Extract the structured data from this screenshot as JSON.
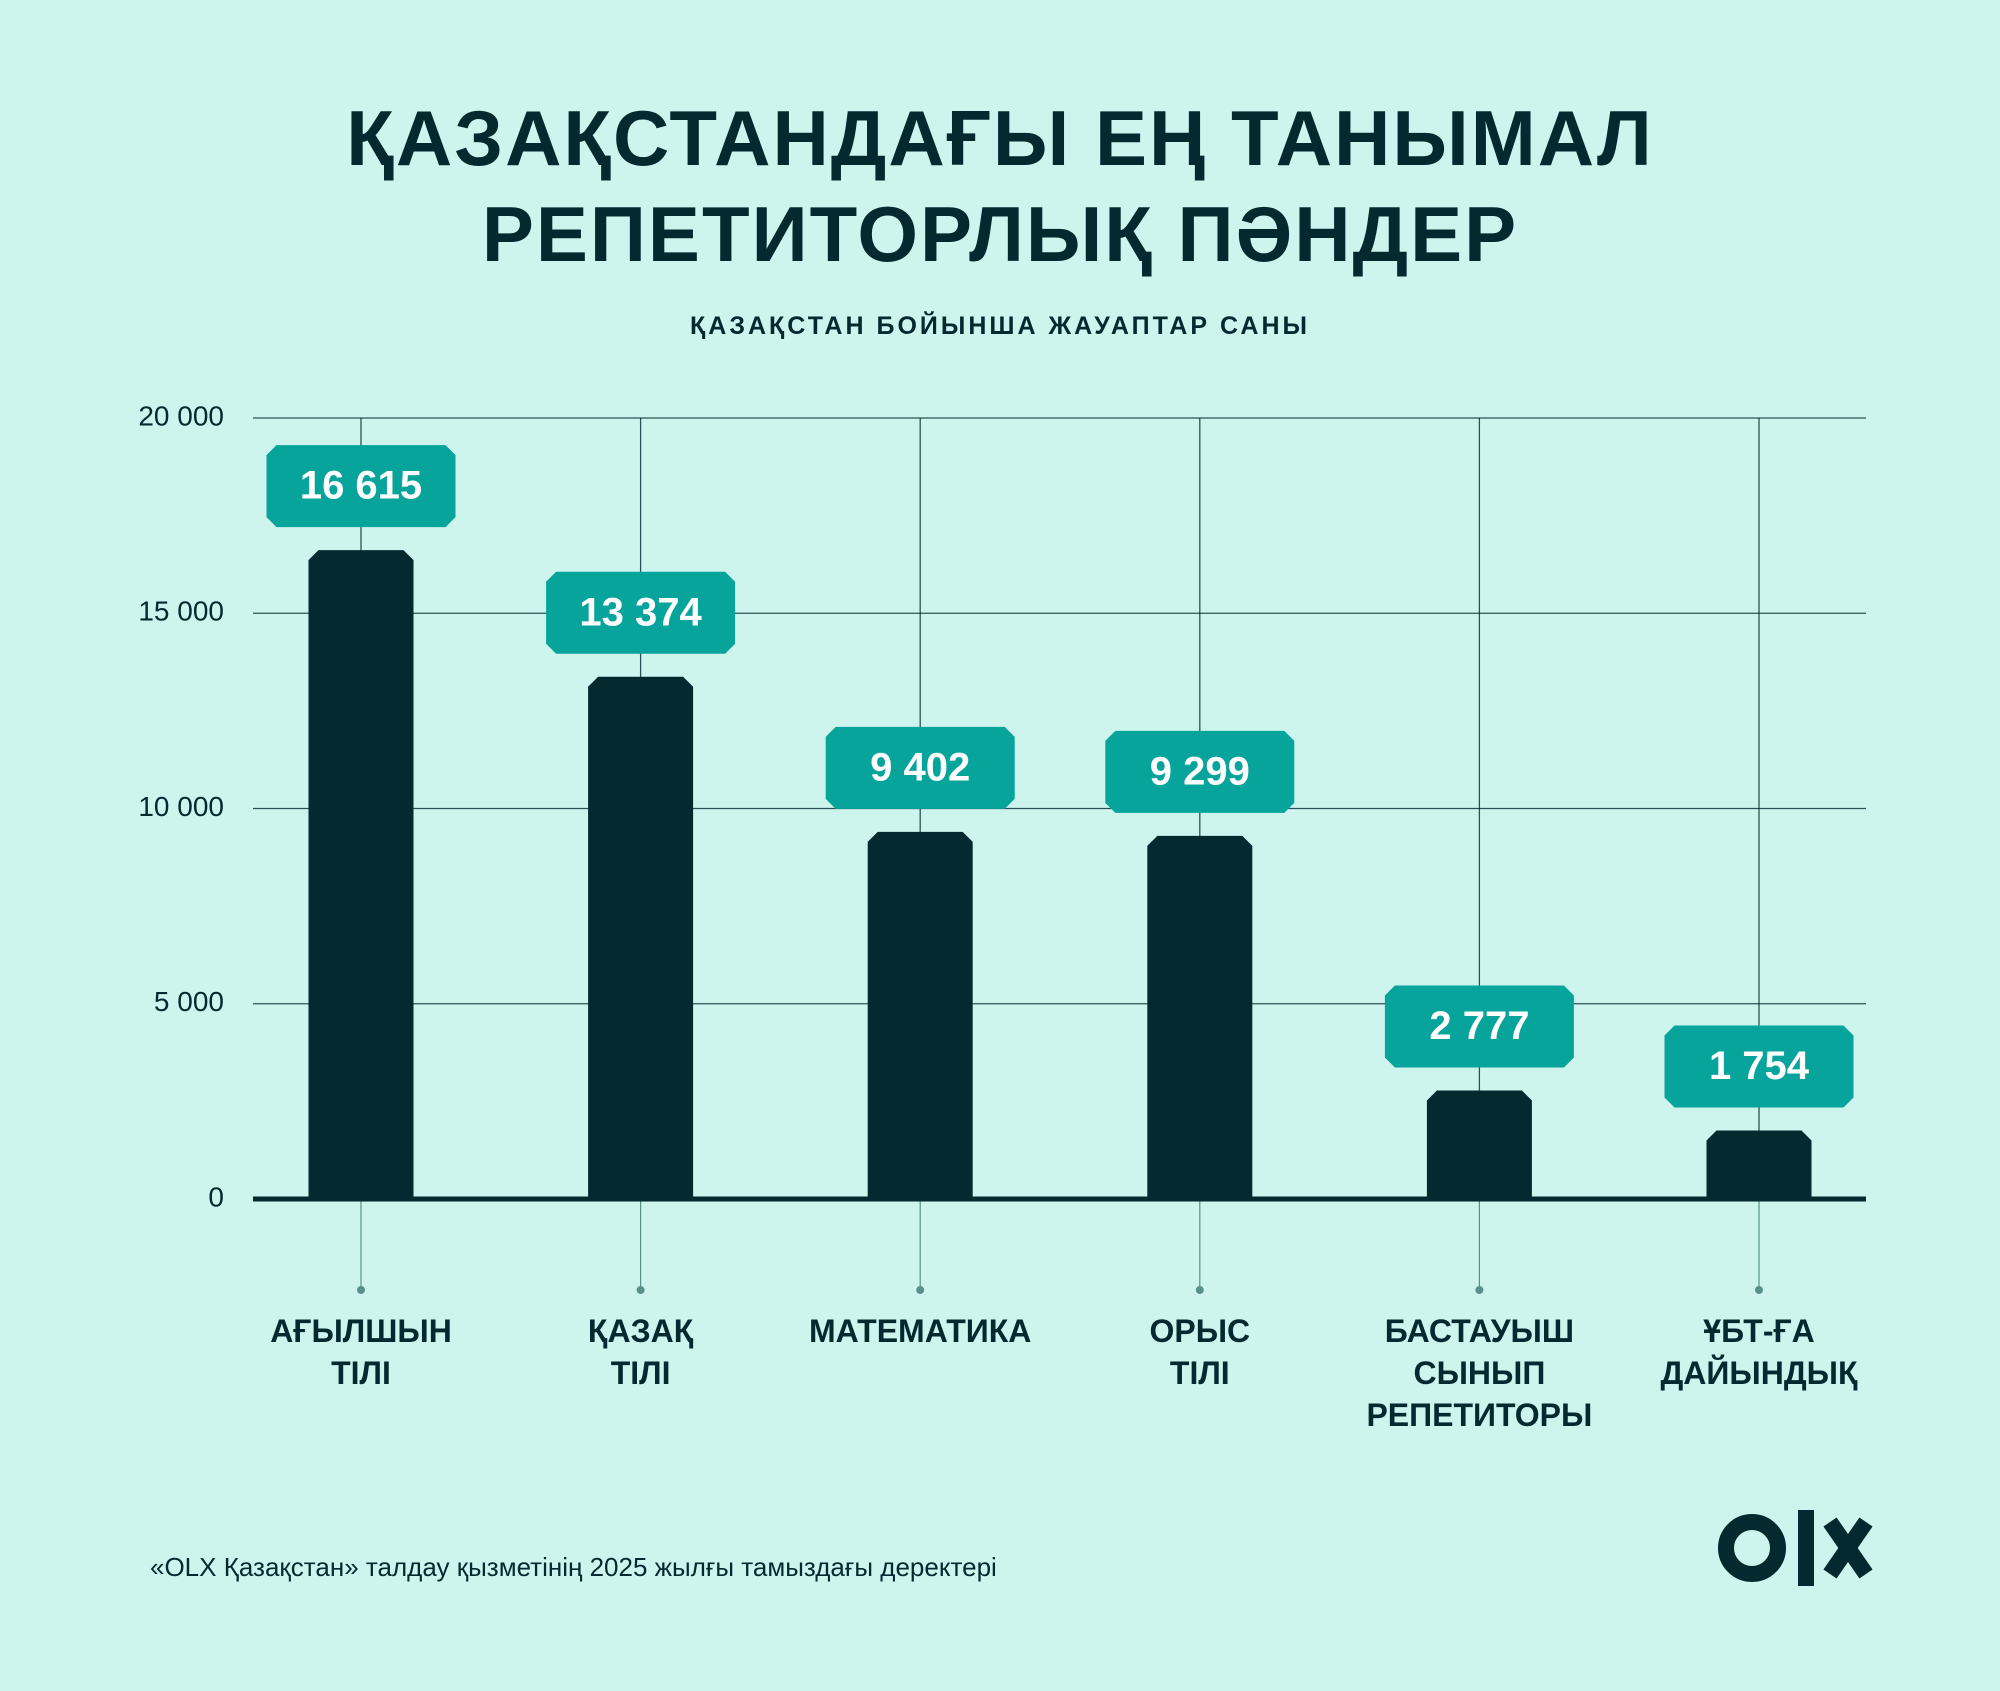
{
  "chart_data": {
    "type": "bar",
    "title": "ҚАЗАҚСТАНДАҒЫ ЕҢ ТАНЫМАЛ\nРЕПЕТИТОРЛЫҚ ПӘНДЕР",
    "subtitle": "ҚАЗАҚСТАН БОЙЫНША ЖАУАПТАР САНЫ",
    "categories": [
      "АҒЫЛШЫН\nТІЛІ",
      "ҚАЗАҚ\nТІЛІ",
      "МАТЕМАТИКА",
      "ОРЫС\nТІЛІ",
      "БАСТАУЫШ\nСЫНЫП\nРЕПЕТИТОРЫ",
      "ҰБТ-ҒА\nДАЙЫНДЫҚ"
    ],
    "values": [
      16615,
      13374,
      9402,
      9299,
      2777,
      1754
    ],
    "value_labels": [
      "16 615",
      "13 374",
      "9 402",
      "9 299",
      "2 777",
      "1 754"
    ],
    "color": "#04292f",
    "label_color": "#06a49b",
    "ylim": [
      0,
      20000
    ],
    "yticks": [
      0,
      {
        "value": 5000,
        "label": "5 000"
      },
      {
        "value": 10000,
        "label": "10 000"
      },
      {
        "value": 15000,
        "label": "15 000"
      },
      {
        "value": 20000,
        "label": "20 000"
      }
    ],
    "grid": true,
    "note": "«OLX Қазақстан» талдау қызметінің 2025 жылғы тамыздағы деректері"
  }
}
